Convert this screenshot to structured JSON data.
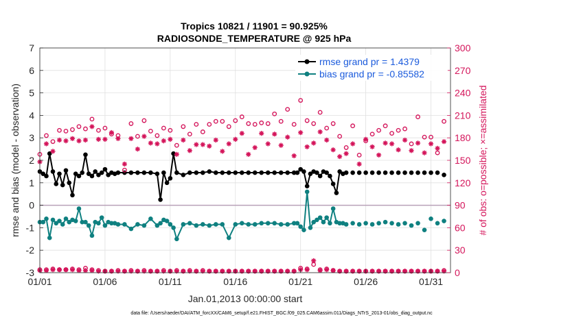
{
  "chart_data": {
    "type": "line",
    "title_line1": "Tropics 10821 / 11901 = 90.925%",
    "title_line2": "RADIOSONDE_TEMPERATURE @ 925 hPa",
    "xlabel": "Jan.01,2013 00:00:00 start",
    "ylabel_left": "rmse and bias (model - observation)",
    "ylabel_right": "# of obs: o=possible; ×=assimilated",
    "footer": "data file: /Users/raeder/DAI/ATM_forcXX/CAM6_setup/f.e21.FHIST_BGC.f09_025.CAM6assim.011/Diags_NTrS_2013-01/obs_diag_output.nc",
    "xlim": [
      0,
      31.5
    ],
    "ylim_left": [
      -3,
      7
    ],
    "ylim_right": [
      0,
      300
    ],
    "x_ticks": [
      {
        "v": 0,
        "label": "01/01"
      },
      {
        "v": 5,
        "label": "01/06"
      },
      {
        "v": 10,
        "label": "01/11"
      },
      {
        "v": 15,
        "label": "01/16"
      },
      {
        "v": 20,
        "label": "01/21"
      },
      {
        "v": 25,
        "label": "01/26"
      },
      {
        "v": 30,
        "label": "01/31"
      }
    ],
    "y_ticks_left": [
      -3,
      -2,
      -1,
      0,
      1,
      2,
      3,
      4,
      5,
      6,
      7
    ],
    "y_ticks_right": [
      0,
      30,
      60,
      90,
      120,
      150,
      180,
      210,
      240,
      270,
      300
    ],
    "colors": {
      "rmse": "#000000",
      "bias": "#0f8080",
      "obs": "#d4145a",
      "zero": "#b8a0b8",
      "grid": "#e0e0e0"
    },
    "legend": [
      {
        "label": "rmse grand pr = 1.4379",
        "series": "rmse"
      },
      {
        "label": "bias grand pr = -0.85582",
        "series": "bias"
      }
    ],
    "series": [
      {
        "name": "rmse",
        "axis": "left",
        "connected_x_max": 23.25,
        "x": [
          0,
          0.25,
          0.5,
          0.75,
          1,
          1.25,
          1.5,
          1.75,
          2,
          2.25,
          2.5,
          2.75,
          3,
          3.25,
          3.5,
          3.75,
          4,
          4.25,
          4.5,
          4.75,
          5,
          5.25,
          5.5,
          5.75,
          6,
          6.5,
          7,
          7.5,
          8,
          8.5,
          9,
          9.25,
          9.5,
          9.75,
          10,
          10.25,
          10.5,
          11,
          11.5,
          12,
          12.5,
          13,
          13.5,
          14,
          14.5,
          15,
          15.5,
          16,
          16.5,
          17,
          17.5,
          18,
          18.5,
          19,
          19.5,
          19.75,
          20,
          20.25,
          20.5,
          20.75,
          21,
          21.25,
          21.5,
          21.75,
          22,
          22.25,
          22.5,
          22.75,
          23,
          23.25,
          23.5,
          24,
          24.5,
          25,
          25.5,
          26,
          26.5,
          27,
          27.5,
          28,
          28.5,
          29,
          29.5,
          30,
          30.5,
          31
        ],
        "values": [
          1.5,
          1.4,
          1.3,
          2.3,
          1.5,
          0.95,
          1.4,
          0.9,
          1.55,
          1.0,
          0.45,
          1.4,
          1.3,
          1.45,
          2.25,
          1.4,
          1.3,
          1.5,
          1.35,
          1.45,
          1.6,
          1.35,
          1.45,
          1.4,
          1.45,
          1.45,
          1.45,
          1.45,
          1.45,
          1.45,
          1.4,
          0.25,
          1.45,
          1.0,
          1.2,
          2.3,
          1.45,
          1.35,
          1.45,
          1.45,
          1.45,
          1.5,
          1.45,
          1.45,
          1.45,
          1.45,
          1.45,
          1.45,
          1.45,
          1.45,
          1.45,
          1.45,
          1.45,
          1.45,
          1.45,
          1.45,
          1.6,
          1.5,
          0.85,
          1.4,
          1.5,
          1.45,
          1.3,
          1.5,
          1.45,
          1.3,
          0.95,
          0.55,
          1.5,
          1.4,
          1.45,
          1.45,
          1.45,
          1.45,
          1.45,
          1.45,
          1.45,
          1.45,
          1.45,
          1.45,
          1.45,
          1.45,
          1.45,
          1.45,
          1.45,
          1.35
        ]
      },
      {
        "name": "bias",
        "axis": "left",
        "connected_x_max": 23.25,
        "x": [
          0,
          0.25,
          0.5,
          0.75,
          1,
          1.25,
          1.5,
          1.75,
          2,
          2.25,
          2.5,
          2.75,
          3,
          3.25,
          3.5,
          3.75,
          4,
          4.25,
          4.5,
          4.75,
          5,
          5.25,
          5.5,
          5.75,
          6,
          6.5,
          7,
          7.5,
          8,
          8.5,
          9,
          9.25,
          9.5,
          9.75,
          10,
          10.25,
          10.5,
          11,
          11.5,
          12,
          12.5,
          13,
          13.5,
          14,
          14.5,
          15,
          15.5,
          16,
          16.5,
          17,
          17.5,
          18,
          18.5,
          19,
          19.5,
          19.75,
          20,
          20.25,
          20.5,
          20.75,
          21,
          21.25,
          21.5,
          21.75,
          22,
          22.25,
          22.5,
          22.75,
          23,
          23.25,
          23.5,
          24,
          24.5,
          25,
          25.5,
          26,
          26.5,
          27,
          27.5,
          28,
          28.5,
          29,
          29.5,
          30,
          30.5,
          31
        ],
        "values": [
          -0.75,
          -0.75,
          -0.6,
          -1.45,
          -0.65,
          -0.8,
          -0.7,
          -0.85,
          -0.6,
          -0.75,
          -0.65,
          -0.7,
          -0.15,
          -0.75,
          -0.75,
          -0.9,
          -1.35,
          -0.75,
          -0.8,
          -0.55,
          -0.9,
          -0.75,
          -0.8,
          -0.8,
          -0.85,
          -0.85,
          -1.05,
          -0.85,
          -0.9,
          -0.6,
          -0.9,
          -0.8,
          -0.65,
          -0.7,
          -0.85,
          -1.0,
          -1.5,
          -0.85,
          -0.8,
          -0.9,
          -0.85,
          -0.9,
          -0.85,
          -0.85,
          -1.45,
          -0.85,
          -0.8,
          -0.85,
          -0.85,
          -0.8,
          -0.8,
          -0.8,
          -0.85,
          -0.85,
          -0.8,
          -0.8,
          -0.95,
          -1.1,
          0.6,
          -1.0,
          -0.75,
          -0.65,
          -0.55,
          -0.75,
          -0.55,
          -0.8,
          -0.15,
          -0.75,
          -0.8,
          -0.8,
          -0.85,
          -0.8,
          -0.85,
          -0.8,
          -0.85,
          -0.8,
          -0.75,
          -0.8,
          -0.85,
          -0.8,
          -0.9,
          -0.8,
          -1.1,
          -0.6,
          -0.8,
          -0.7
        ]
      },
      {
        "name": "obs possible",
        "axis": "right",
        "marker": "o",
        "x": [
          0,
          0.5,
          1,
          1.5,
          2,
          2.5,
          3,
          3.5,
          4,
          4.5,
          5,
          5.5,
          6,
          6.5,
          7,
          7.5,
          8,
          8.5,
          9,
          9.5,
          10,
          10.5,
          11,
          11.5,
          12,
          12.5,
          13,
          13.5,
          14,
          14.5,
          15,
          15.5,
          16,
          16.5,
          17,
          17.5,
          18,
          18.5,
          19,
          19.5,
          20,
          20.5,
          21,
          21.5,
          22,
          22.5,
          23,
          23.5,
          24,
          24.5,
          25,
          25.5,
          26,
          26.5,
          27,
          27.5,
          28,
          28.5,
          29,
          29.5,
          30,
          30.5,
          31
        ],
        "values": [
          158,
          183,
          175,
          190,
          189,
          191,
          195,
          192,
          205,
          190,
          193,
          185,
          183,
          137,
          199,
          182,
          203,
          189,
          183,
          193,
          190,
          170,
          195,
          185,
          198,
          188,
          198,
          202,
          202,
          195,
          203,
          208,
          199,
          198,
          200,
          199,
          212,
          202,
          218,
          198,
          230,
          203,
          199,
          214,
          193,
          199,
          182,
          167,
          196,
          157,
          176,
          185,
          190,
          196,
          186,
          190,
          192,
          172,
          208,
          181,
          181,
          160,
          202
        ]
      },
      {
        "name": "obs assimilated",
        "axis": "right",
        "marker": "x",
        "x": [
          0,
          0.5,
          1,
          1.5,
          2,
          2.5,
          3,
          3.5,
          4,
          4.5,
          5,
          5.5,
          6,
          6.5,
          7,
          7.5,
          8,
          8.5,
          9,
          9.5,
          10,
          10.5,
          11,
          11.5,
          12,
          12.5,
          13,
          13.5,
          14,
          14.5,
          15,
          15.5,
          16,
          16.5,
          17,
          17.5,
          18,
          18.5,
          19,
          19.5,
          20,
          20.5,
          21,
          21.5,
          22,
          22.5,
          23,
          23.5,
          24,
          24.5,
          25,
          25.5,
          26,
          26.5,
          27,
          27.5,
          28,
          28.5,
          29,
          29.5,
          30,
          30.5,
          31
        ],
        "values": [
          148,
          172,
          162,
          177,
          176,
          179,
          176,
          177,
          195,
          178,
          178,
          187,
          179,
          145,
          179,
          165,
          182,
          173,
          172,
          176,
          178,
          158,
          177,
          163,
          171,
          171,
          169,
          177,
          162,
          172,
          178,
          186,
          158,
          167,
          186,
          172,
          185,
          170,
          181,
          156,
          187,
          168,
          173,
          188,
          177,
          164,
          155,
          159,
          172,
          145,
          178,
          168,
          157,
          173,
          172,
          164,
          177,
          163,
          173,
          160,
          172,
          166,
          175
        ]
      },
      {
        "name": "obs possible low",
        "axis": "right",
        "marker": "o",
        "x": [
          0,
          0.5,
          1,
          1.5,
          2,
          2.5,
          3,
          3.5,
          4,
          4.5,
          5,
          5.5,
          6,
          6.5,
          7,
          7.5,
          8,
          8.5,
          9,
          9.5,
          10,
          10.5,
          11,
          11.5,
          12,
          12.5,
          13,
          13.5,
          14,
          14.5,
          15,
          15.5,
          16,
          16.5,
          17,
          17.5,
          18,
          18.5,
          19,
          19.5,
          20,
          20.5,
          21,
          21.5,
          22,
          22.5,
          23,
          23.5,
          24,
          24.5,
          25,
          25.5,
          26,
          26.5,
          27,
          27.5,
          28,
          28.5,
          29,
          29.5,
          30,
          30.5,
          31
        ],
        "values": [
          4,
          4,
          5,
          4,
          4,
          5,
          4,
          6,
          4,
          3,
          2,
          2,
          3,
          2,
          3,
          2,
          3,
          2,
          2,
          3,
          2,
          3,
          2,
          3,
          2,
          3,
          2,
          2,
          2,
          2,
          2,
          2,
          2,
          2,
          2,
          2,
          2,
          2,
          2,
          2,
          6,
          5,
          11,
          4,
          5,
          3,
          2,
          2,
          2,
          2,
          2,
          2,
          2,
          2,
          2,
          2,
          2,
          2,
          2,
          2,
          2,
          2,
          3
        ]
      },
      {
        "name": "obs assimilated low",
        "axis": "right",
        "marker": "x",
        "x": [
          0,
          0.5,
          1,
          1.5,
          2,
          2.5,
          3,
          3.5,
          4,
          4.5,
          5,
          5.5,
          6,
          6.5,
          7,
          7.5,
          8,
          8.5,
          9,
          9.5,
          10,
          10.5,
          11,
          11.5,
          12,
          12.5,
          13,
          13.5,
          14,
          14.5,
          15,
          15.5,
          16,
          16.5,
          17,
          17.5,
          18,
          18.5,
          19,
          19.5,
          20,
          20.5,
          21,
          21.5,
          22,
          22.5,
          23,
          23.5,
          24,
          24.5,
          25,
          25.5,
          26,
          26.5,
          27,
          27.5,
          28,
          28.5,
          29,
          29.5,
          30,
          30.5,
          31
        ],
        "values": [
          3,
          3,
          4,
          4,
          4,
          4,
          3,
          3,
          3,
          2,
          2,
          2,
          2,
          2,
          2,
          2,
          2,
          2,
          2,
          2,
          2,
          2,
          2,
          2,
          2,
          2,
          2,
          2,
          2,
          2,
          2,
          2,
          2,
          2,
          2,
          2,
          2,
          2,
          2,
          2,
          4,
          4,
          16,
          3,
          4,
          3,
          2,
          2,
          2,
          2,
          2,
          2,
          2,
          2,
          2,
          2,
          2,
          2,
          2,
          2,
          2,
          2,
          2
        ]
      }
    ]
  }
}
